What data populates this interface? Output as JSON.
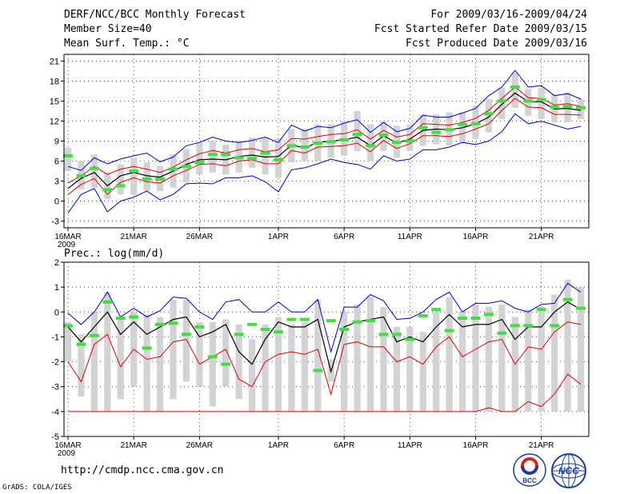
{
  "header": {
    "title": "DERF/NCC/BCC Monthly Forecast",
    "member_size": "Member Size=40",
    "variable": "Mean Surf. Temp.: °C",
    "period": "For 2009/03/16-2009/04/24",
    "fcst_started": "Fcst Started Refer Date 2009/03/15",
    "fcst_produced": "Fcst Produced Date 2009/03/16"
  },
  "footer": {
    "url": "http://cmdp.ncc.cma.gov.cn",
    "grads": "GrADS: COLA/IGES",
    "logo_bcc": "BCC",
    "logo_ncc": "NCC"
  },
  "colors": {
    "box": "#d3d3d5",
    "max": "#0000cc",
    "min": "#0000cc",
    "pct": "#dd0000",
    "mean": "#000000",
    "marker": "#44dd44"
  },
  "chart_data": [
    {
      "type": "line",
      "title": "Mean Surf. Temp.: °C",
      "xlabel": "",
      "ylabel": "",
      "days": 40,
      "x_ticks": [
        "16MAR",
        "21MAR",
        "26MAR",
        "1APR",
        "6APR",
        "11APR",
        "16APR",
        "21APR"
      ],
      "x_tick_day": [
        0,
        5,
        10,
        16,
        21,
        26,
        31,
        36
      ],
      "year_label": "2009",
      "ylim": [
        -4,
        22
      ],
      "y_ticks": [
        -3,
        0,
        3,
        6,
        9,
        12,
        15,
        18,
        21
      ],
      "series": {
        "max": [
          5.2,
          4.6,
          6.5,
          5.6,
          6.3,
          6.8,
          7.2,
          5.9,
          6.6,
          8.3,
          8.8,
          9.6,
          9.0,
          8.8,
          9.1,
          9.6,
          8.8,
          11.4,
          10.5,
          11.2,
          11.0,
          11.7,
          12.2,
          10.3,
          11.8,
          10.4,
          10.9,
          12.9,
          12.6,
          12.6,
          13.2,
          13.9,
          15.8,
          17.1,
          19.6,
          17.1,
          17.3,
          15.8,
          16.1,
          15.3
        ],
        "p75": [
          2.7,
          3.8,
          5.2,
          4.0,
          4.8,
          5.2,
          4.8,
          4.3,
          5.1,
          6.2,
          7.1,
          7.6,
          7.2,
          7.7,
          7.9,
          7.4,
          7.7,
          9.4,
          9.3,
          9.7,
          10.0,
          10.1,
          10.7,
          9.3,
          10.6,
          9.6,
          10.0,
          11.6,
          11.5,
          11.4,
          11.8,
          12.4,
          13.6,
          15.4,
          17.1,
          15.5,
          15.4,
          14.4,
          14.6,
          14.2
        ],
        "mean": [
          1.9,
          3.4,
          4.3,
          2.3,
          3.8,
          4.3,
          3.8,
          3.6,
          4.5,
          5.5,
          6.2,
          6.3,
          6.2,
          6.7,
          6.9,
          6.6,
          6.7,
          8.4,
          8.0,
          8.8,
          9.0,
          9.2,
          9.6,
          8.3,
          9.8,
          8.7,
          9.3,
          10.6,
          10.8,
          10.7,
          11.0,
          11.6,
          12.6,
          14.5,
          16.2,
          14.9,
          14.9,
          13.8,
          13.9,
          13.6
        ],
        "p25": [
          1.0,
          2.5,
          3.4,
          1.0,
          2.8,
          3.5,
          2.9,
          2.7,
          3.8,
          4.6,
          5.5,
          5.6,
          5.3,
          6.0,
          6.2,
          5.6,
          5.6,
          7.6,
          7.2,
          8.1,
          8.2,
          8.3,
          8.7,
          7.4,
          9.1,
          7.9,
          8.6,
          9.8,
          9.8,
          9.7,
          10.1,
          10.8,
          11.6,
          13.6,
          15.4,
          14.1,
          14.0,
          13.0,
          13.0,
          12.9
        ],
        "min": [
          -1.8,
          1.0,
          1.9,
          -1.6,
          0.0,
          0.6,
          1.5,
          0.2,
          1.0,
          2.6,
          2.7,
          2.6,
          3.5,
          3.5,
          3.8,
          2.9,
          1.4,
          4.7,
          5.0,
          5.6,
          6.3,
          5.8,
          5.5,
          4.8,
          6.8,
          6.0,
          6.3,
          7.7,
          7.7,
          8.1,
          8.8,
          8.5,
          9.0,
          10.4,
          13.1,
          11.6,
          12.0,
          11.4,
          10.8,
          11.2
        ],
        "box_low": [
          4.5,
          1.8,
          2.0,
          0.3,
          1.0,
          1.0,
          1.5,
          1.5,
          2.0,
          2.8,
          4.0,
          4.3,
          4.0,
          4.3,
          5.0,
          4.0,
          3.5,
          5.8,
          6.0,
          6.0,
          6.5,
          6.8,
          7.5,
          6.0,
          7.5,
          6.5,
          7.5,
          8.3,
          8.5,
          8.3,
          8.8,
          9.3,
          10.3,
          12.3,
          14.0,
          12.8,
          12.3,
          11.8,
          11.8,
          12.3
        ],
        "box_high": [
          8.0,
          6.0,
          7.0,
          4.3,
          5.5,
          6.5,
          5.8,
          5.3,
          7.0,
          7.8,
          8.8,
          9.0,
          8.5,
          9.0,
          9.5,
          9.5,
          9.3,
          10.8,
          10.8,
          11.5,
          11.5,
          12.0,
          13.5,
          11.5,
          12.0,
          11.3,
          11.5,
          13.0,
          13.0,
          13.3,
          13.3,
          14.3,
          15.3,
          17.0,
          19.3,
          16.8,
          17.0,
          16.0,
          16.3,
          15.3
        ],
        "marker": [
          6.8,
          3.8,
          4.9,
          1.7,
          2.3,
          4.5,
          3.3,
          3.3,
          4.8,
          5.2,
          5.8,
          7.0,
          7.0,
          6.5,
          6.4,
          7.2,
          6.2,
          8.3,
          8.1,
          8.7,
          8.9,
          9.2,
          10.0,
          8.3,
          9.9,
          8.8,
          9.0,
          11.0,
          10.3,
          10.7,
          11.5,
          11.6,
          13.1,
          15.0,
          17.1,
          15.0,
          15.2,
          14.1,
          14.2,
          14.0
        ]
      }
    },
    {
      "type": "line",
      "title": "Prec.: log(mm/d)",
      "xlabel": "",
      "ylabel": "",
      "days": 40,
      "x_ticks": [
        "16MAR",
        "21MAR",
        "26MAR",
        "1APR",
        "6APR",
        "11APR",
        "16APR",
        "21APR"
      ],
      "x_tick_day": [
        0,
        5,
        10,
        16,
        21,
        26,
        31,
        36
      ],
      "year_label": "2009",
      "ylim": [
        -5,
        2
      ],
      "y_ticks": [
        -5,
        -4,
        -3,
        -2,
        -1,
        0,
        1,
        2
      ],
      "series": {
        "max": [
          -0.05,
          -0.5,
          0.0,
          0.8,
          -0.2,
          0.15,
          -0.2,
          0.05,
          0.6,
          0.55,
          0.0,
          -0.3,
          0.4,
          0.5,
          0.0,
          0.0,
          0.4,
          0.0,
          0.0,
          0.5,
          -1.6,
          0.2,
          0.2,
          0.7,
          0.45,
          -0.3,
          -0.25,
          0.0,
          0.5,
          0.8,
          0.0,
          0.35,
          0.35,
          0.45,
          0.15,
          0.0,
          0.3,
          0.35,
          1.15,
          0.8
        ],
        "mean": [
          -0.6,
          -1.2,
          -0.6,
          0.0,
          -0.9,
          -0.4,
          -0.9,
          -0.6,
          -0.3,
          -0.2,
          -1.0,
          -0.8,
          -0.5,
          -1.6,
          -2.1,
          -1.1,
          -0.4,
          -0.6,
          -0.6,
          -0.3,
          -2.4,
          -0.6,
          -0.4,
          -0.3,
          -0.2,
          -1.2,
          -1.0,
          -1.2,
          -0.6,
          -0.1,
          -0.6,
          -0.5,
          -0.5,
          -0.3,
          -1.1,
          -0.6,
          -0.6,
          0.0,
          0.4,
          0.1
        ],
        "p10": [
          -2.0,
          -2.8,
          -1.3,
          -0.9,
          -2.2,
          -1.5,
          -1.9,
          -1.8,
          -1.2,
          -1.1,
          -2.1,
          -1.8,
          -1.5,
          -2.7,
          -3.0,
          -2.0,
          -1.7,
          -1.6,
          -1.7,
          -1.5,
          -3.3,
          -1.3,
          -1.2,
          -1.4,
          -1.4,
          -2.0,
          -1.8,
          -2.1,
          -1.4,
          -1.0,
          -1.8,
          -1.5,
          -1.2,
          -1.1,
          -2.1,
          -1.4,
          -1.5,
          -0.8,
          -0.4,
          -0.5
        ],
        "low_red": [
          -4.0,
          -4.0,
          -4.0,
          -4.0,
          -4.0,
          -4.0,
          -4.0,
          -4.0,
          -4.0,
          -4.0,
          -4.0,
          -4.0,
          -4.0,
          -4.0,
          -4.0,
          -4.0,
          -4.0,
          -4.0,
          -4.0,
          -4.0,
          -4.0,
          -4.0,
          -4.0,
          -4.0,
          -4.0,
          -4.0,
          -4.0,
          -4.0,
          -4.0,
          -4.0,
          -4.0,
          -4.0,
          -3.85,
          -4.0,
          -4.0,
          -3.6,
          -3.8,
          -3.3,
          -2.5,
          -2.9
        ],
        "box_low": [
          -2.0,
          -3.4,
          -4.0,
          -4.0,
          -3.5,
          -3.0,
          -4.0,
          -4.0,
          -3.5,
          -2.8,
          -3.0,
          -3.8,
          -3.0,
          -3.5,
          -4.0,
          -4.0,
          -4.0,
          -4.0,
          -4.0,
          -4.0,
          -2.8,
          -4.0,
          -4.0,
          -4.0,
          -4.0,
          -4.0,
          -4.0,
          -4.0,
          -4.0,
          -4.0,
          -4.0,
          -4.0,
          -4.0,
          -4.0,
          -4.0,
          -4.0,
          -4.0,
          -4.0,
          -4.0,
          -4.0
        ],
        "box_high": [
          -0.4,
          -0.9,
          0.0,
          0.8,
          -0.3,
          0.0,
          -0.1,
          -0.2,
          0.5,
          0.5,
          -0.4,
          -0.4,
          -0.3,
          -0.5,
          -1.1,
          -0.5,
          -0.2,
          -0.5,
          -0.4,
          0.5,
          -1.9,
          0.0,
          0.3,
          0.6,
          0.2,
          -0.6,
          -0.6,
          -0.8,
          0.0,
          0.6,
          0.0,
          0.3,
          0.2,
          0.3,
          -0.2,
          0.1,
          0.2,
          0.7,
          1.3,
          1.0
        ],
        "marker": [
          -0.55,
          -1.3,
          -0.95,
          0.4,
          -0.25,
          -0.2,
          -1.45,
          -0.5,
          -0.45,
          -0.9,
          -0.6,
          -1.8,
          -2.1,
          -0.9,
          -0.5,
          -0.7,
          -0.8,
          -0.3,
          -0.3,
          -2.35,
          -0.35,
          -0.7,
          -0.4,
          -0.35,
          -0.9,
          -0.9,
          -1.1,
          -0.15,
          0.1,
          -0.75,
          -0.25,
          -0.25,
          -0.1,
          -0.85,
          -0.55,
          -0.55,
          0.1,
          -0.55,
          0.5,
          0.15
        ]
      }
    }
  ]
}
